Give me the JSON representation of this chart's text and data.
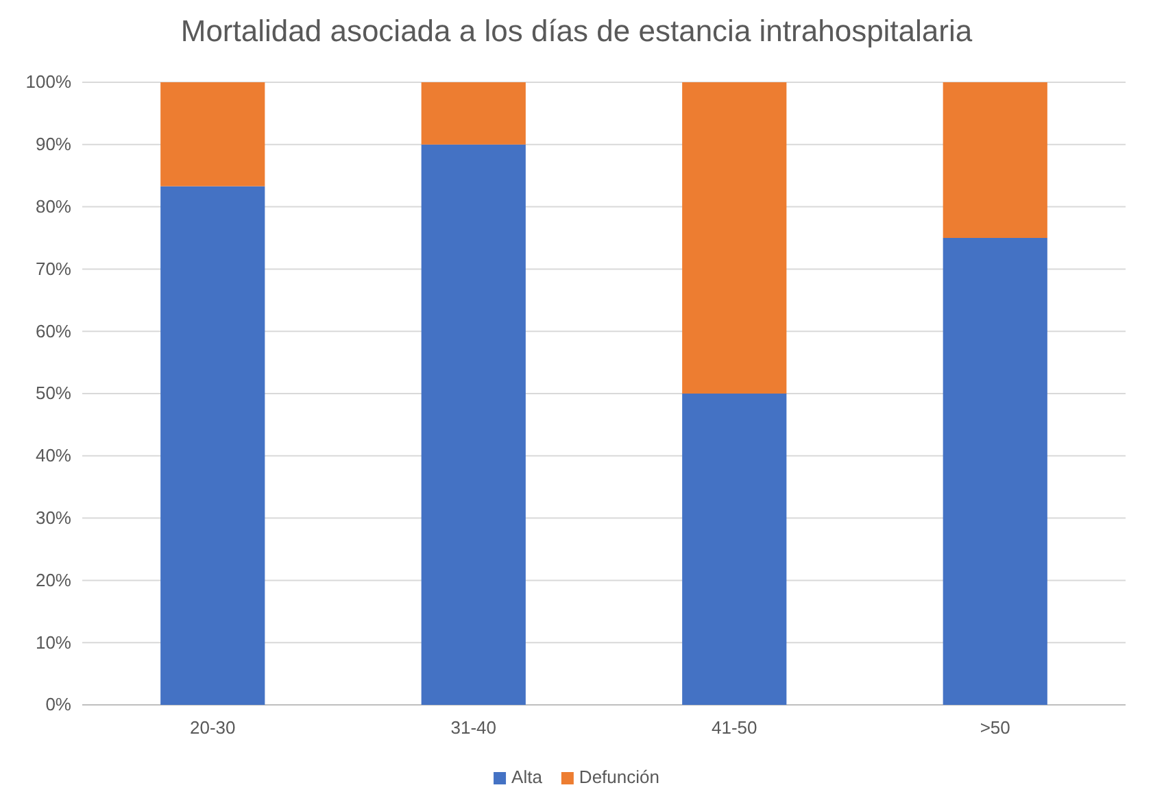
{
  "chart_data": {
    "type": "bar",
    "title": "Mortalidad asociada a los días de estancia intrahospitalaria",
    "categories": [
      "20-30",
      "31-40",
      "41-50",
      ">50"
    ],
    "stacked": true,
    "series": [
      {
        "name": "Alta",
        "color": "#4472c4",
        "values": [
          83.3,
          90,
          50,
          75
        ]
      },
      {
        "name": "Defunción",
        "color": "#ed7d31",
        "values": [
          16.7,
          10,
          50,
          25
        ]
      }
    ],
    "ylim": [
      0,
      100
    ],
    "yticks": [
      {
        "value": 0,
        "label": "0%"
      },
      {
        "value": 10,
        "label": "10%"
      },
      {
        "value": 20,
        "label": "20%"
      },
      {
        "value": 30,
        "label": "30%"
      },
      {
        "value": 40,
        "label": "40%"
      },
      {
        "value": 50,
        "label": "50%"
      },
      {
        "value": 60,
        "label": "60%"
      },
      {
        "value": 70,
        "label": "70%"
      },
      {
        "value": 80,
        "label": "80%"
      },
      {
        "value": 90,
        "label": "90%"
      },
      {
        "value": 100,
        "label": "100%"
      }
    ],
    "grid": "y",
    "legend": "bottom"
  }
}
